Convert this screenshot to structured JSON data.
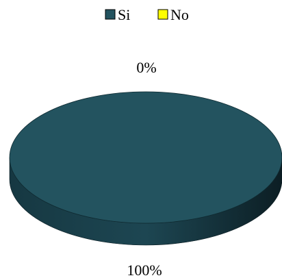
{
  "chart_data": {
    "type": "pie",
    "style": "3d",
    "legend": "top",
    "series": [
      {
        "name": "Si",
        "value": 100,
        "label": "100%",
        "color": "#23535F"
      },
      {
        "name": "No",
        "value": 0,
        "label": "0%",
        "color": "#FFFF00"
      }
    ]
  }
}
